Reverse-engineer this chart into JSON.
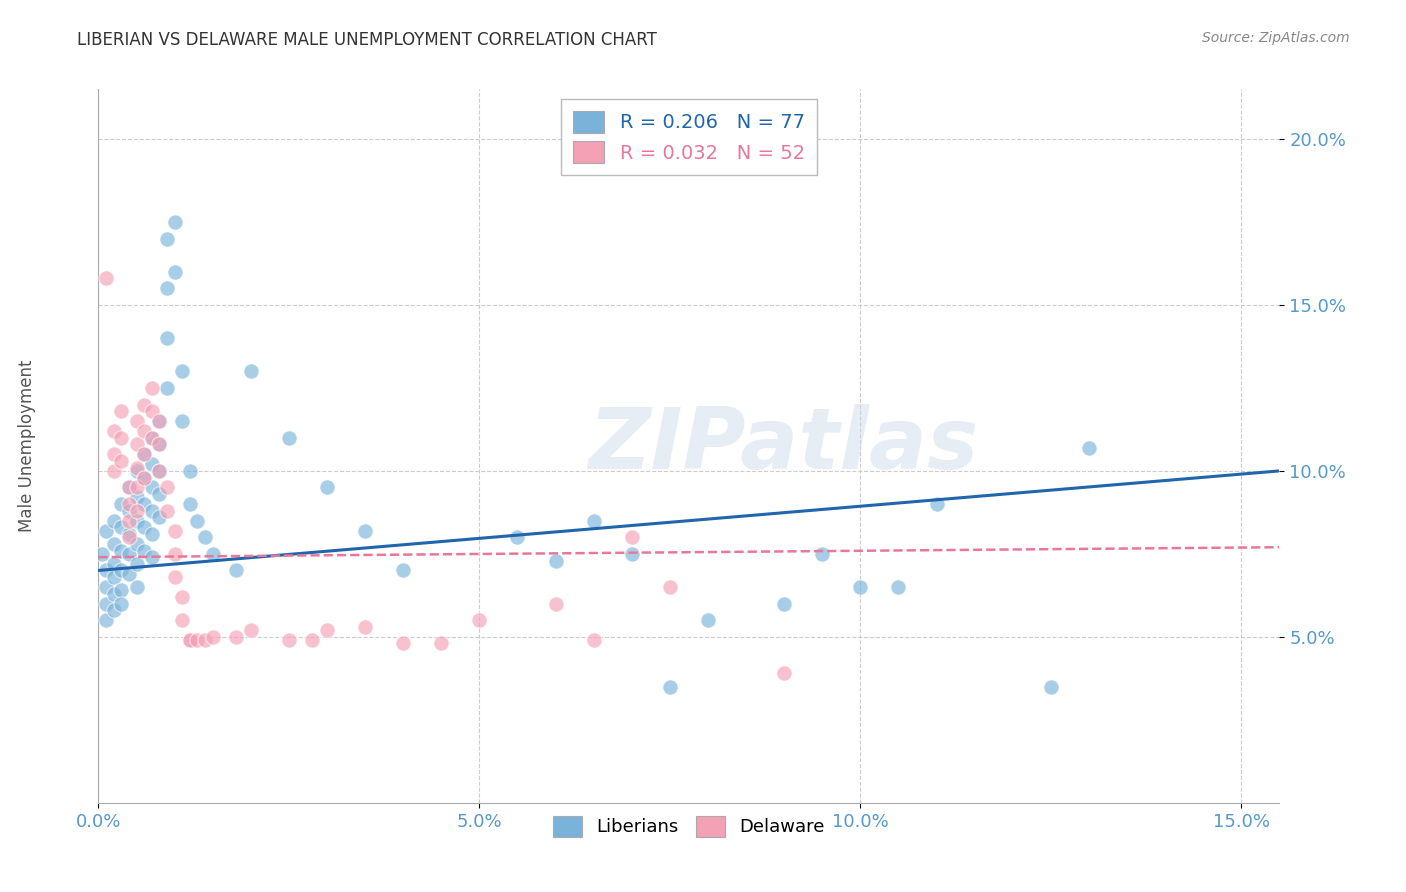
{
  "title": "LIBERIAN VS DELAWARE MALE UNEMPLOYMENT CORRELATION CHART",
  "source": "Source: ZipAtlas.com",
  "ylabel": "Male Unemployment",
  "xlim": [
    0.0,
    0.155
  ],
  "ylim": [
    0.0,
    0.215
  ],
  "xticks": [
    0.0,
    0.05,
    0.1,
    0.15
  ],
  "xtick_labels": [
    "0.0%",
    "5.0%",
    "10.0%",
    "15.0%"
  ],
  "yticks": [
    0.05,
    0.1,
    0.15,
    0.2
  ],
  "ytick_labels": [
    "5.0%",
    "10.0%",
    "15.0%",
    "20.0%"
  ],
  "watermark": "ZIPatlas",
  "liberian_color": "#7ab3d9",
  "delaware_color": "#f4a0b5",
  "liberian_line_color": "#2166ac",
  "delaware_line_color": "#e8779a",
  "bg_color": "#ffffff",
  "grid_color": "#cccccc",
  "tick_color": "#5599cc",
  "title_color": "#333333",
  "axis_label_color": "#555555",
  "lib_line_start_y": 0.07,
  "lib_line_end_y": 0.1,
  "del_line_start_y": 0.074,
  "del_line_end_y": 0.077,
  "liberian_points": [
    [
      0.0005,
      0.075
    ],
    [
      0.001,
      0.082
    ],
    [
      0.001,
      0.07
    ],
    [
      0.001,
      0.065
    ],
    [
      0.001,
      0.06
    ],
    [
      0.001,
      0.055
    ],
    [
      0.002,
      0.085
    ],
    [
      0.002,
      0.078
    ],
    [
      0.002,
      0.072
    ],
    [
      0.002,
      0.068
    ],
    [
      0.002,
      0.063
    ],
    [
      0.002,
      0.058
    ],
    [
      0.003,
      0.09
    ],
    [
      0.003,
      0.083
    ],
    [
      0.003,
      0.076
    ],
    [
      0.003,
      0.07
    ],
    [
      0.003,
      0.064
    ],
    [
      0.003,
      0.06
    ],
    [
      0.004,
      0.095
    ],
    [
      0.004,
      0.088
    ],
    [
      0.004,
      0.081
    ],
    [
      0.004,
      0.075
    ],
    [
      0.004,
      0.069
    ],
    [
      0.005,
      0.1
    ],
    [
      0.005,
      0.092
    ],
    [
      0.005,
      0.085
    ],
    [
      0.005,
      0.078
    ],
    [
      0.005,
      0.072
    ],
    [
      0.005,
      0.065
    ],
    [
      0.006,
      0.105
    ],
    [
      0.006,
      0.098
    ],
    [
      0.006,
      0.09
    ],
    [
      0.006,
      0.083
    ],
    [
      0.006,
      0.076
    ],
    [
      0.007,
      0.11
    ],
    [
      0.007,
      0.102
    ],
    [
      0.007,
      0.095
    ],
    [
      0.007,
      0.088
    ],
    [
      0.007,
      0.081
    ],
    [
      0.007,
      0.074
    ],
    [
      0.008,
      0.115
    ],
    [
      0.008,
      0.108
    ],
    [
      0.008,
      0.1
    ],
    [
      0.008,
      0.093
    ],
    [
      0.008,
      0.086
    ],
    [
      0.009,
      0.17
    ],
    [
      0.009,
      0.155
    ],
    [
      0.009,
      0.14
    ],
    [
      0.009,
      0.125
    ],
    [
      0.01,
      0.175
    ],
    [
      0.01,
      0.16
    ],
    [
      0.011,
      0.13
    ],
    [
      0.011,
      0.115
    ],
    [
      0.012,
      0.1
    ],
    [
      0.012,
      0.09
    ],
    [
      0.013,
      0.085
    ],
    [
      0.014,
      0.08
    ],
    [
      0.015,
      0.075
    ],
    [
      0.018,
      0.07
    ],
    [
      0.02,
      0.13
    ],
    [
      0.025,
      0.11
    ],
    [
      0.03,
      0.095
    ],
    [
      0.035,
      0.082
    ],
    [
      0.04,
      0.07
    ],
    [
      0.055,
      0.08
    ],
    [
      0.06,
      0.073
    ],
    [
      0.065,
      0.085
    ],
    [
      0.07,
      0.075
    ],
    [
      0.075,
      0.035
    ],
    [
      0.08,
      0.055
    ],
    [
      0.09,
      0.06
    ],
    [
      0.095,
      0.075
    ],
    [
      0.1,
      0.065
    ],
    [
      0.105,
      0.065
    ],
    [
      0.11,
      0.09
    ],
    [
      0.125,
      0.035
    ],
    [
      0.13,
      0.107
    ]
  ],
  "delaware_points": [
    [
      0.001,
      0.158
    ],
    [
      0.002,
      0.112
    ],
    [
      0.002,
      0.105
    ],
    [
      0.002,
      0.1
    ],
    [
      0.003,
      0.118
    ],
    [
      0.003,
      0.11
    ],
    [
      0.003,
      0.103
    ],
    [
      0.004,
      0.095
    ],
    [
      0.004,
      0.09
    ],
    [
      0.004,
      0.085
    ],
    [
      0.004,
      0.08
    ],
    [
      0.005,
      0.115
    ],
    [
      0.005,
      0.108
    ],
    [
      0.005,
      0.101
    ],
    [
      0.005,
      0.095
    ],
    [
      0.005,
      0.088
    ],
    [
      0.006,
      0.12
    ],
    [
      0.006,
      0.112
    ],
    [
      0.006,
      0.105
    ],
    [
      0.006,
      0.098
    ],
    [
      0.007,
      0.125
    ],
    [
      0.007,
      0.118
    ],
    [
      0.007,
      0.11
    ],
    [
      0.008,
      0.115
    ],
    [
      0.008,
      0.108
    ],
    [
      0.008,
      0.1
    ],
    [
      0.009,
      0.095
    ],
    [
      0.009,
      0.088
    ],
    [
      0.01,
      0.082
    ],
    [
      0.01,
      0.075
    ],
    [
      0.01,
      0.068
    ],
    [
      0.011,
      0.062
    ],
    [
      0.011,
      0.055
    ],
    [
      0.012,
      0.049
    ],
    [
      0.012,
      0.049
    ],
    [
      0.013,
      0.049
    ],
    [
      0.014,
      0.049
    ],
    [
      0.015,
      0.05
    ],
    [
      0.018,
      0.05
    ],
    [
      0.02,
      0.052
    ],
    [
      0.025,
      0.049
    ],
    [
      0.028,
      0.049
    ],
    [
      0.03,
      0.052
    ],
    [
      0.035,
      0.053
    ],
    [
      0.04,
      0.048
    ],
    [
      0.045,
      0.048
    ],
    [
      0.05,
      0.055
    ],
    [
      0.06,
      0.06
    ],
    [
      0.065,
      0.049
    ],
    [
      0.07,
      0.08
    ],
    [
      0.075,
      0.065
    ],
    [
      0.09,
      0.039
    ]
  ]
}
